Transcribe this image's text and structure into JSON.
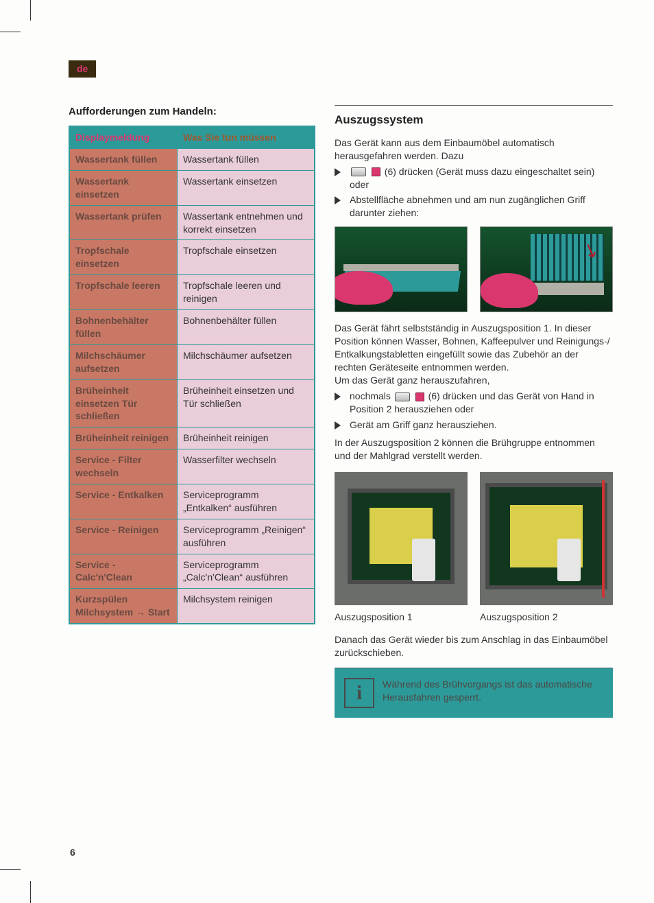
{
  "lang_tab": "de",
  "left": {
    "heading": "Aufforderungen zum Handeln:",
    "table": {
      "header": {
        "col1": "Displaymeldung",
        "col2": "Was Sie tun müssen"
      },
      "rows": [
        {
          "c1": "Wassertank füllen",
          "c2": "Wassertank füllen"
        },
        {
          "c1": "Wassertank einsetzen",
          "c2": "Wassertank einsetzen"
        },
        {
          "c1": "Wassertank prüfen",
          "c2": "Wassertank entneh­men und korrekt ein­setzen"
        },
        {
          "c1": "Tropfschale einsetzen",
          "c2": "Tropfschale einsetzen"
        },
        {
          "c1": "Tropfschale leeren",
          "c2": "Tropfschale leeren und reinigen"
        },
        {
          "c1": "Bohnenbehälter füllen",
          "c2": "Bohnenbehälter füllen"
        },
        {
          "c1": "Milchschäumer aufsetzen",
          "c2": "Milchschäumer auf­setzen"
        },
        {
          "c1": "Brüheinheit einsetzen Tür schließen",
          "c2": "Brüheinheit einsetzen und Tür schließen"
        },
        {
          "c1": "Brüheinheit reinigen",
          "c2": "Brüheinheit reinigen"
        },
        {
          "c1": "Service - Filter wechseln",
          "c2": "Wasserfilter wechseln"
        },
        {
          "c1": "Service - Entkalken",
          "c2": "Serviceprogramm „Entkalken“ ausführen"
        },
        {
          "c1": "Service - Reinigen",
          "c2": "Serviceprogramm „Reinigen“ ausführen"
        },
        {
          "c1": "Service - Calc'n'Clean",
          "c2": "Serviceprogramm „Calc'n'Clean“ aus­führen"
        },
        {
          "c1": "Kurzspülen Milchsystem → Start",
          "c2": "Milchsystem reinigen"
        }
      ]
    }
  },
  "right": {
    "title": "Auszugssystem",
    "p1": "Das Gerät kann aus dem Einbaumöbel automatisch herausgefahren werden. Dazu",
    "li1a": "(6) drücken (Gerät muss dazu eingeschaltet sein) oder",
    "li1b": "Abstellfläche abnehmen und am nun zugänglichen Griff darunter ziehen:",
    "p2": "Das Gerät fährt selbstständig in Auszugsposition 1. In dieser Position kön­nen Wasser, Bohnen, Kaffeepulver und Reinigungs-/ Entkalkungstabletten einge­füllt sowie das Zubehör an der rechten Geräteseite entnommen werden.",
    "p2b": "Um das Gerät ganz herauszufahren,",
    "li2a_pre": "nochmals",
    "li2a_post": "(6) drücken und das Gerät von Hand in Position 2 herauszie­hen oder",
    "li2b": "Gerät am Griff ganz herausziehen.",
    "p3": "In der Auszugsposition 2 können die Brühgruppe entnommen und der Mahlgrad verstellt werden.",
    "cap1": "Auszugsposition 1",
    "cap2": "Auszugsposition 2",
    "p4": "Danach das Gerät wieder bis zum Anschlag in das Einbaumöbel zurückschieben.",
    "info": "Während des Brühvorgangs ist das automatische Herausfahren gesperrt."
  },
  "page_number": "6",
  "colors": {
    "teal": "#2d9a9a",
    "salmon": "#c87864",
    "pink_cell": "#e9cdd9",
    "magenta": "#d9376e",
    "brown_header": "#9c5a2f",
    "tab_bg": "#3a2a0f"
  }
}
